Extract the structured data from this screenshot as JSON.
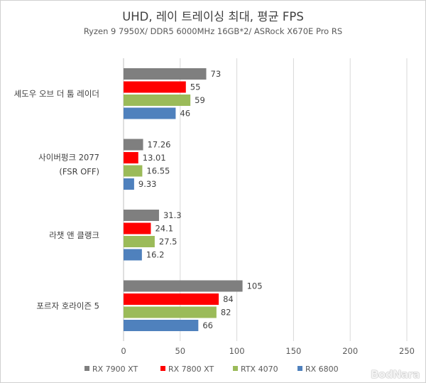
{
  "chart_data": {
    "type": "bar",
    "orientation": "horizontal",
    "title": "UHD, 레이 트레이싱 최대, 평균 FPS",
    "subtitle": "Ryzen 9 7950X/ DDR5 6000MHz 16GB*2/ ASRock X670E Pro RS",
    "categories": [
      [
        "셰도우 오브 더 툼 레이더"
      ],
      [
        "사이버펑크 2077",
        "(FSR OFF)"
      ],
      [
        "라챗 앤 클랭크"
      ],
      [
        "포르자 호라이즌 5"
      ]
    ],
    "series": [
      {
        "name": "RX 7900 XT",
        "color": "#7f7f7f",
        "values": [
          73,
          17.26,
          31.3,
          105
        ],
        "labels": [
          "73",
          "17.26",
          "31.3",
          "105"
        ]
      },
      {
        "name": "RX 7800 XT",
        "color": "#ff0000",
        "values": [
          55,
          13.01,
          24.1,
          84
        ],
        "labels": [
          "55",
          "13.01",
          "24.1",
          "84"
        ]
      },
      {
        "name": "RTX 4070",
        "color": "#9bbb59",
        "values": [
          59,
          16.55,
          27.5,
          82
        ],
        "labels": [
          "59",
          "16.55",
          "27.5",
          "82"
        ]
      },
      {
        "name": "RX 6800",
        "color": "#4f81bd",
        "values": [
          46,
          9.33,
          16.2,
          66
        ],
        "labels": [
          "46",
          "9.33",
          "16.2",
          "66"
        ]
      }
    ],
    "xlim": [
      0,
      250
    ],
    "xticks": [
      0,
      50,
      100,
      150,
      200,
      250
    ],
    "grid": true,
    "legend_position": "bottom"
  },
  "watermark": "BodNara"
}
